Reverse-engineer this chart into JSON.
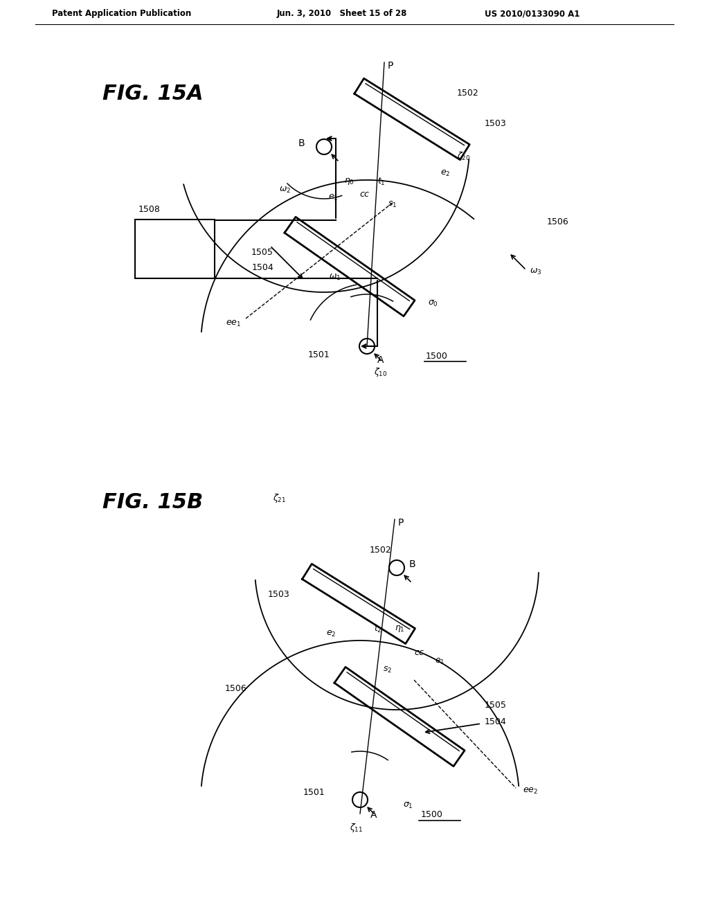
{
  "header_left": "Patent Application Publication",
  "header_mid": "Jun. 3, 2010   Sheet 15 of 28",
  "header_right": "US 2010/0133090 A1",
  "fig_title_A": "FIG. 15A",
  "fig_title_B": "FIG. 15B",
  "bg_color": "#ffffff",
  "line_color": "#000000"
}
